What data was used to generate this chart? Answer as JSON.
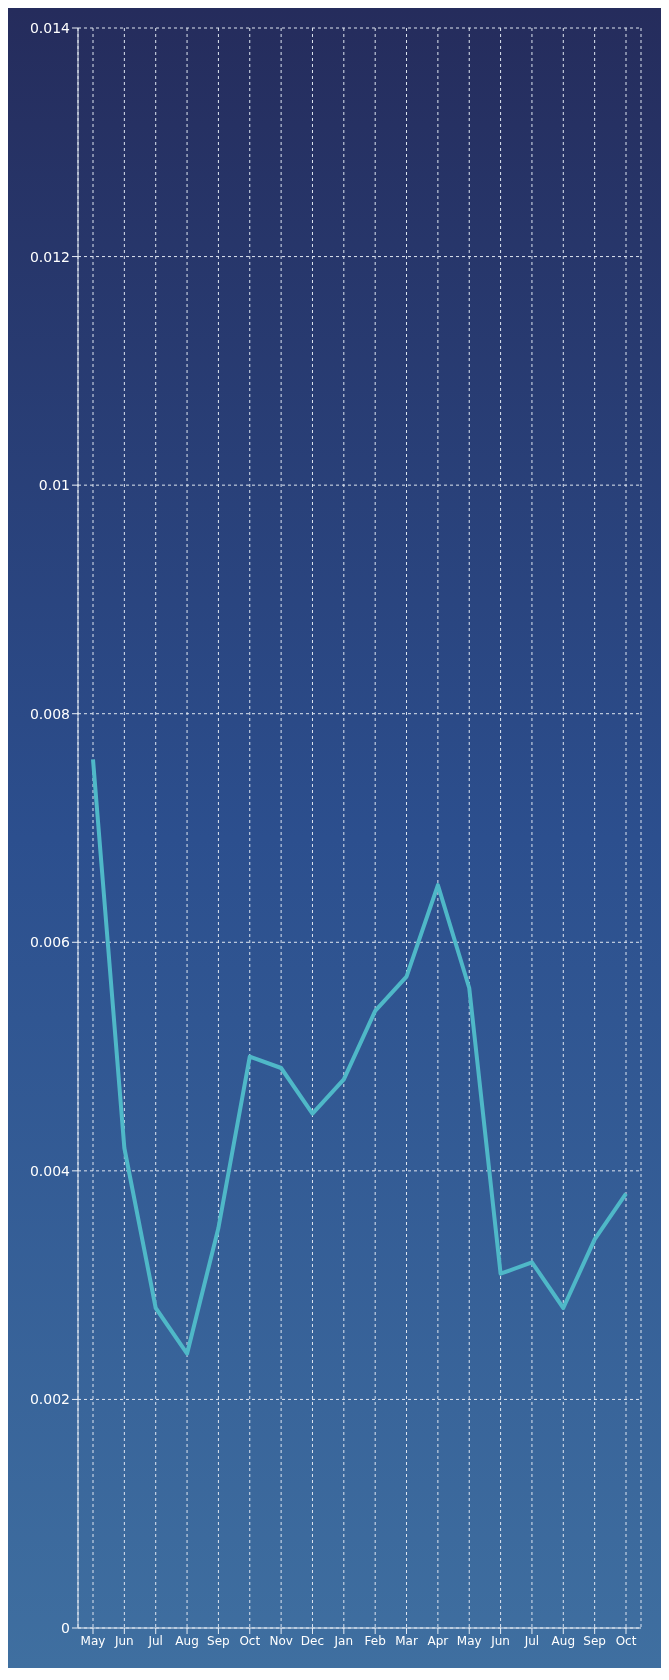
{
  "chart_data": {
    "type": "line",
    "categories": [
      "May",
      "Jun",
      "Jul",
      "Aug",
      "Sep",
      "Oct",
      "Nov",
      "Dec",
      "Jan",
      "Feb",
      "Mar",
      "Apr",
      "May",
      "Jun",
      "Jul",
      "Aug",
      "Sep",
      "Oct"
    ],
    "series": [
      {
        "color": "#4fb8c8",
        "values": [
          0.0076,
          0.0042,
          0.0028,
          0.0024,
          0.0035,
          0.005,
          0.0049,
          0.0045,
          0.0048,
          0.0054,
          0.0057,
          0.0065,
          0.0056,
          0.0031,
          0.0032,
          0.0028,
          0.0034,
          0.0038
        ]
      }
    ],
    "ylim": [
      0,
      0.014
    ],
    "yticks": [
      0,
      0.002,
      0.004,
      0.006,
      0.008,
      0.01,
      0.012,
      0.014
    ],
    "grid": true,
    "marker": "none",
    "line_style": "solid"
  }
}
